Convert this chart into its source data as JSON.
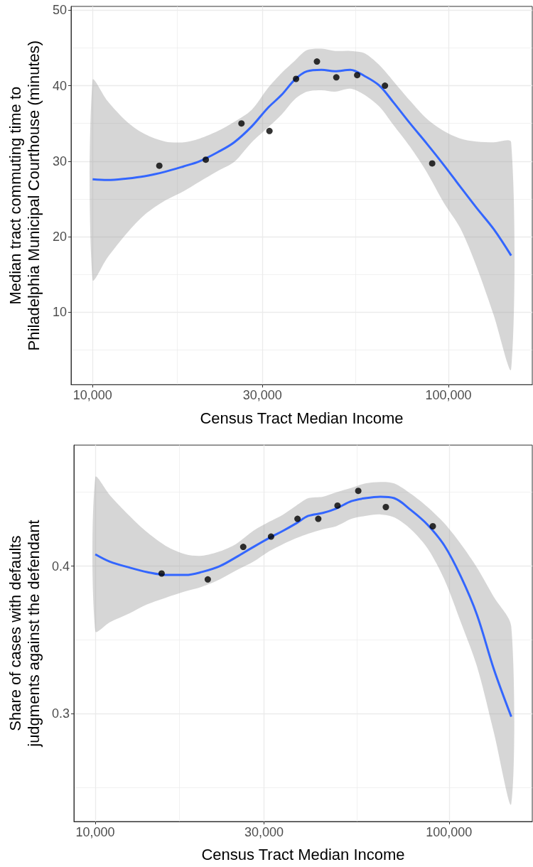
{
  "chart_data": [
    {
      "type": "scatter",
      "xlabel": "Census Tract Median Income",
      "ylabel": "Median tract commuting time to\nPhiladelphia Municipal Courthouse (minutes)",
      "log": "x",
      "xlim": [
        8700,
        172000
      ],
      "xticks": [
        {
          "value": 10000,
          "label": "10,000"
        },
        {
          "value": 17300,
          "label": null
        },
        {
          "value": 30000,
          "label": "30,000"
        },
        {
          "value": 54800,
          "label": null
        },
        {
          "value": 100000,
          "label": "100,000"
        }
      ],
      "ylim": [
        0.4,
        50.5
      ],
      "yticks": [
        {
          "value": 5,
          "label": null
        },
        10,
        {
          "value": 15,
          "label": null
        },
        20,
        {
          "value": 25,
          "label": null
        },
        30,
        {
          "value": 35,
          "label": null
        },
        40,
        {
          "value": 45,
          "label": null
        },
        50
      ],
      "grid": true,
      "series": [
        {
          "type": "line",
          "color": "#3366ff",
          "x": [
            10000,
            11000,
            12500,
            14000,
            16000,
            18000,
            20000,
            22500,
            25000,
            28000,
            31000,
            34000,
            37000,
            40000,
            44000,
            48000,
            53000,
            58000,
            64000,
            70000,
            78000,
            87000,
            97000,
            108000,
            120000,
            134000,
            150000
          ],
          "values": [
            27.6,
            27.5,
            27.7,
            28.0,
            28.6,
            29.3,
            30.0,
            31.2,
            32.5,
            34.6,
            37.0,
            38.8,
            40.8,
            41.9,
            42.1,
            41.9,
            42.1,
            41.3,
            40.0,
            37.8,
            35.0,
            32.3,
            29.5,
            26.6,
            23.8,
            21.0,
            17.5
          ],
          "lower": [
            14.3,
            17.2,
            20.5,
            22.9,
            24.8,
            26.0,
            27.3,
            28.7,
            29.9,
            32.5,
            34.4,
            36.2,
            38.2,
            39.2,
            39.4,
            39.2,
            39.6,
            38.8,
            37.2,
            34.8,
            31.9,
            28.5,
            24.5,
            21.1,
            16.0,
            9.6,
            2.5
          ],
          "upper": [
            40.7,
            38.0,
            35.2,
            33.6,
            32.6,
            32.5,
            33.0,
            34.0,
            35.2,
            36.8,
            39.6,
            41.7,
            43.3,
            44.7,
            44.9,
            44.6,
            44.6,
            44.3,
            42.7,
            40.6,
            38.0,
            35.6,
            34.0,
            33.0,
            32.6,
            32.5,
            32.5
          ]
        },
        {
          "type": "scatter",
          "color": "#000000",
          "marker": "circle",
          "x": [
            15400,
            20800,
            26200,
            31400,
            37300,
            42700,
            48400,
            55400,
            66300,
            90000
          ],
          "values": [
            29.4,
            30.2,
            35.0,
            34.0,
            40.9,
            43.2,
            41.1,
            41.4,
            40.0,
            29.7
          ]
        }
      ]
    },
    {
      "type": "scatter",
      "xlabel": "Census Tract Median Income",
      "ylabel": "Share of cases with defaults\njudgments against the defendant",
      "log": "x",
      "xlim": [
        8700,
        172000
      ],
      "xticks": [
        {
          "value": 10000,
          "label": "10,000"
        },
        {
          "value": 17300,
          "label": null
        },
        {
          "value": 30000,
          "label": "30,000"
        },
        {
          "value": 54800,
          "label": null
        },
        {
          "value": 100000,
          "label": "100,000"
        }
      ],
      "ylim": [
        0.227,
        0.482
      ],
      "yticks": [
        {
          "value": 0.25,
          "label": null
        },
        0.3,
        {
          "value": 0.35,
          "label": null
        },
        0.4,
        {
          "value": 0.45,
          "label": null
        }
      ],
      "grid": true,
      "series": [
        {
          "type": "line",
          "color": "#3366ff",
          "x": [
            10000,
            11000,
            12500,
            14000,
            16000,
            18000,
            20000,
            22500,
            25000,
            28000,
            31000,
            34000,
            37000,
            40000,
            44000,
            48000,
            53000,
            58000,
            64000,
            70000,
            78000,
            87000,
            97000,
            108000,
            120000,
            134000,
            150000
          ],
          "values": [
            0.408,
            0.403,
            0.399,
            0.396,
            0.394,
            0.394,
            0.396,
            0.4,
            0.406,
            0.413,
            0.419,
            0.424,
            0.429,
            0.434,
            0.436,
            0.439,
            0.444,
            0.446,
            0.447,
            0.446,
            0.438,
            0.428,
            0.414,
            0.393,
            0.367,
            0.33,
            0.298
          ],
          "lower": [
            0.356,
            0.362,
            0.368,
            0.374,
            0.379,
            0.383,
            0.386,
            0.391,
            0.397,
            0.403,
            0.41,
            0.415,
            0.419,
            0.422,
            0.425,
            0.427,
            0.432,
            0.434,
            0.435,
            0.433,
            0.425,
            0.412,
            0.391,
            0.362,
            0.332,
            0.287,
            0.239
          ],
          "upper": [
            0.46,
            0.448,
            0.434,
            0.423,
            0.413,
            0.408,
            0.407,
            0.41,
            0.415,
            0.424,
            0.43,
            0.435,
            0.441,
            0.446,
            0.447,
            0.45,
            0.453,
            0.456,
            0.457,
            0.456,
            0.449,
            0.44,
            0.429,
            0.415,
            0.399,
            0.379,
            0.359
          ]
        },
        {
          "type": "scatter",
          "color": "#000000",
          "marker": "circle",
          "x": [
            15400,
            20800,
            26200,
            31400,
            37300,
            42700,
            48400,
            55400,
            66300,
            90000
          ],
          "values": [
            0.395,
            0.391,
            0.413,
            0.42,
            0.432,
            0.432,
            0.441,
            0.451,
            0.44,
            0.427
          ]
        }
      ]
    }
  ]
}
